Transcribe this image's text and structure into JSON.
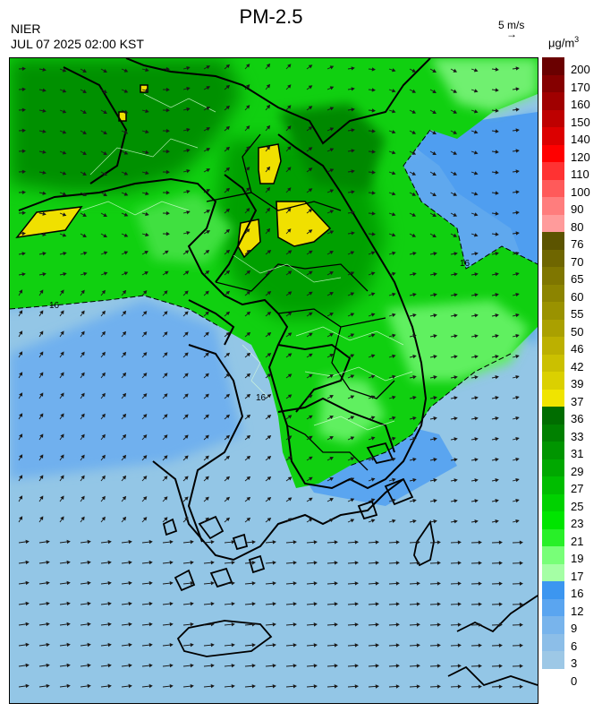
{
  "header": {
    "title": "PM-2.5",
    "agency": "NIER",
    "datetime": "JUL 07 2025 02:00 KST",
    "wind_reference_label": "5 m/s",
    "wind_reference_arrow": "→",
    "unit_prefix": "μg/m",
    "unit_power": "3"
  },
  "map": {
    "contour_label": "16",
    "sea_color": "#93c6e6",
    "land_outline_color": "#000000",
    "highlight_color": "#f0e000"
  },
  "legend": {
    "bands": [
      {
        "value": "200",
        "color": "#6a0000"
      },
      {
        "value": "170",
        "color": "#850000"
      },
      {
        "value": "160",
        "color": "#a00000"
      },
      {
        "value": "150",
        "color": "#be0000"
      },
      {
        "value": "140",
        "color": "#dc0000"
      },
      {
        "value": "120",
        "color": "#ff0000"
      },
      {
        "value": "110",
        "color": "#ff3232"
      },
      {
        "value": "100",
        "color": "#ff5a5a"
      },
      {
        "value": "90",
        "color": "#ff7d7d"
      },
      {
        "value": "80",
        "color": "#ff9b9b"
      },
      {
        "value": "76",
        "color": "#5c5400"
      },
      {
        "value": "70",
        "color": "#6f6600"
      },
      {
        "value": "65",
        "color": "#7f7600"
      },
      {
        "value": "60",
        "color": "#8c8400"
      },
      {
        "value": "55",
        "color": "#9a9200"
      },
      {
        "value": "50",
        "color": "#aaa000"
      },
      {
        "value": "46",
        "color": "#bcb000"
      },
      {
        "value": "42",
        "color": "#cbc000"
      },
      {
        "value": "39",
        "color": "#dbd000"
      },
      {
        "value": "37",
        "color": "#f0e400"
      },
      {
        "value": "36",
        "color": "#006d00"
      },
      {
        "value": "33",
        "color": "#008000"
      },
      {
        "value": "31",
        "color": "#009500"
      },
      {
        "value": "29",
        "color": "#00a800"
      },
      {
        "value": "27",
        "color": "#00bd00"
      },
      {
        "value": "25",
        "color": "#00d200"
      },
      {
        "value": "23",
        "color": "#00e500"
      },
      {
        "value": "21",
        "color": "#28f028"
      },
      {
        "value": "19",
        "color": "#78ff78"
      },
      {
        "value": "17",
        "color": "#a5ffa5"
      },
      {
        "value": "16",
        "color": "#3c96f0"
      },
      {
        "value": "12",
        "color": "#5aa5f0"
      },
      {
        "value": "9",
        "color": "#78b4ec"
      },
      {
        "value": "6",
        "color": "#8cbee8"
      },
      {
        "value": "3",
        "color": "#9dc8e6"
      },
      {
        "value": "0",
        "color": "#9dc8e6"
      }
    ]
  }
}
